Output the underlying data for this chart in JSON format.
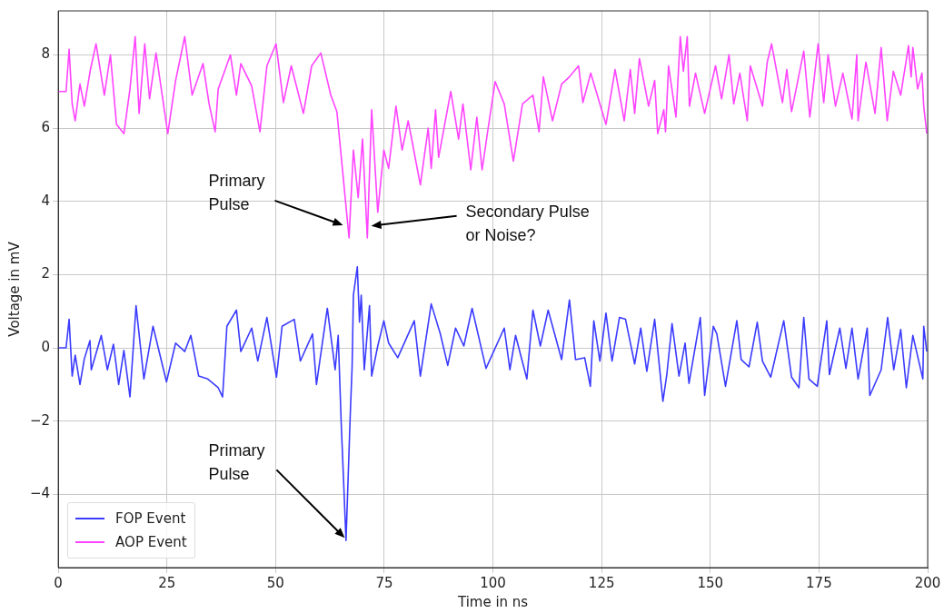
{
  "chart_data": {
    "type": "line",
    "xlabel": "Time in ns",
    "ylabel": "Voltage in mV",
    "xlim": [
      0,
      200
    ],
    "xticks": [
      0,
      25,
      50,
      75,
      100,
      125,
      150,
      175,
      200
    ],
    "ylim": [
      -6,
      9.2
    ],
    "yticks": [
      {
        "value": -4,
        "label": "−4"
      },
      {
        "value": -2,
        "label": "−2"
      },
      0,
      2,
      4,
      6,
      8
    ],
    "grid": true,
    "legend": "bottom left",
    "marker": "none",
    "line_style": "solid",
    "series": [
      {
        "name": "FOP Event",
        "color": "#3b3bff",
        "x": [
          0,
          1.8,
          2.5,
          3.2,
          3.9,
          5.0,
          6.0,
          7.3,
          7.6,
          9.9,
          11.3,
          12.7,
          13.9,
          15.1,
          16.5,
          17.9,
          19.7,
          21.8,
          24.9,
          27.0,
          29.1,
          30.5,
          32.3,
          34.4,
          36.8,
          37.8,
          38.8,
          41.0,
          42.0,
          44.5,
          45.9,
          48.0,
          50.2,
          51.5,
          54.3,
          55.7,
          58.5,
          59.4,
          61.9,
          63.7,
          64.4,
          65.1,
          66.2,
          67.2,
          67.6,
          67.9,
          68.8,
          69.3,
          69.7,
          70.4,
          71.6,
          72.1,
          73.5,
          74.9,
          76.0,
          78.1,
          81.9,
          83.3,
          85.8,
          87.9,
          89.6,
          91.4,
          93.3,
          95.2,
          98.4,
          102.6,
          103.9,
          105.2,
          107.8,
          109.2,
          110.9,
          112.7,
          115.8,
          117.6,
          119.0,
          121.1,
          122.4,
          123.2,
          124.6,
          126.0,
          127.4,
          129.1,
          130.5,
          132.6,
          134.0,
          135.4,
          137.2,
          139.1,
          140.0,
          141.2,
          142.8,
          144.2,
          145.1,
          147.7,
          148.7,
          150.7,
          151.5,
          153.5,
          156.1,
          157.1,
          158.9,
          160.8,
          162.0,
          163.9,
          166.9,
          168.7,
          170.4,
          171.5,
          172.7,
          174.6,
          176.8,
          177.4,
          179.8,
          181.2,
          182.6,
          184.0,
          186.1,
          186.7,
          189.3,
          190.8,
          192.2,
          193.8,
          195.1,
          196.6,
          198.9,
          199.1,
          199.8
        ],
        "values": [
          0,
          0,
          0.78,
          -0.77,
          -0.2,
          -1.0,
          -0.3,
          0.2,
          -0.6,
          0.34,
          -0.6,
          0.1,
          -1.0,
          -0.07,
          -1.34,
          1.15,
          -0.85,
          0.59,
          -0.93,
          0.13,
          -0.1,
          0.34,
          -0.77,
          -0.85,
          -1.09,
          -1.34,
          0.59,
          1.03,
          -0.1,
          0.54,
          -0.36,
          0.83,
          -0.8,
          0.59,
          0.78,
          -0.36,
          0.38,
          -1.0,
          1.08,
          -0.6,
          0.34,
          -2.07,
          -5.26,
          -1.74,
          -0.52,
          1.44,
          2.21,
          0.7,
          1.44,
          -0.6,
          1.15,
          -0.77,
          0.05,
          0.74,
          0.13,
          -0.27,
          0.74,
          -0.77,
          1.2,
          0.38,
          -0.48,
          0.54,
          0.05,
          1.08,
          -0.56,
          0.54,
          -0.6,
          0.34,
          -0.85,
          1.03,
          0.05,
          1.03,
          -0.32,
          1.31,
          -0.32,
          -0.27,
          -1.05,
          0.74,
          -0.36,
          0.95,
          -0.36,
          0.83,
          0.78,
          -0.44,
          0.54,
          -0.64,
          0.78,
          -1.46,
          -0.73,
          0.66,
          -0.77,
          0.13,
          -0.97,
          0.83,
          -1.3,
          0.59,
          0.38,
          -1.05,
          0.74,
          -0.32,
          -0.52,
          0.7,
          -0.36,
          -0.8,
          0.74,
          -0.8,
          -1.09,
          0.83,
          -0.85,
          -1.05,
          0.74,
          -0.73,
          0.54,
          -0.56,
          0.54,
          -0.85,
          0.54,
          -1.3,
          -0.6,
          0.83,
          -0.6,
          0.5,
          -1.09,
          0.34,
          -0.85,
          0.59,
          -0.1
        ]
      },
      {
        "name": "AOP Event",
        "color": "#ff44ff",
        "x": [
          0,
          1.8,
          2.5,
          3.2,
          3.9,
          5.0,
          6.0,
          7.4,
          8.7,
          10.6,
          12.0,
          13.4,
          15.1,
          16.5,
          17.7,
          18.6,
          19.9,
          21.0,
          22.5,
          25.2,
          27.0,
          29.1,
          30.8,
          33.3,
          34.7,
          36.1,
          36.8,
          39.6,
          41.0,
          42.0,
          44.5,
          46.4,
          48.0,
          50.1,
          51.8,
          53.6,
          56.4,
          58.3,
          60.4,
          62.7,
          64.1,
          66.9,
          67.9,
          69.0,
          70.0,
          71.1,
          72.1,
          73.5,
          74.9,
          76.0,
          77.7,
          79.1,
          80.5,
          83.3,
          85.1,
          85.8,
          86.8,
          87.5,
          90.3,
          92.1,
          93.1,
          94.9,
          96.3,
          97.5,
          98.7,
          100.5,
          102.6,
          104.7,
          106.8,
          109.2,
          110.6,
          111.6,
          113.7,
          115.8,
          117.6,
          119.7,
          120.7,
          122.5,
          126.0,
          128.1,
          130.2,
          131.6,
          132.6,
          133.7,
          135.8,
          137.2,
          137.9,
          139.3,
          139.7,
          140.4,
          142.1,
          143.1,
          143.8,
          144.7,
          145.2,
          146.6,
          148.7,
          151.2,
          152.6,
          154.3,
          155.4,
          156.8,
          158.5,
          159.2,
          162.0,
          163.1,
          164.1,
          166.6,
          167.6,
          168.7,
          171.5,
          172.9,
          174.8,
          176.1,
          177.1,
          178.8,
          180.5,
          182.6,
          183.7,
          184.0,
          185.8,
          187.9,
          189.3,
          190.7,
          192.1,
          193.8,
          195.6,
          196.2,
          196.6,
          197.7,
          198.7,
          199.1,
          199.8
        ],
        "values": [
          7.0,
          7.0,
          8.15,
          6.66,
          6.2,
          7.2,
          6.6,
          7.6,
          8.3,
          6.9,
          8.0,
          6.1,
          5.85,
          7.07,
          8.5,
          6.4,
          8.3,
          6.8,
          8.05,
          5.85,
          7.3,
          8.5,
          6.9,
          7.76,
          6.66,
          5.9,
          7.07,
          8.0,
          6.9,
          7.76,
          7.15,
          5.9,
          7.7,
          8.3,
          6.7,
          7.7,
          6.4,
          7.7,
          8.05,
          6.9,
          6.45,
          3.0,
          5.4,
          4.1,
          5.7,
          3.0,
          6.5,
          3.7,
          5.4,
          4.9,
          6.6,
          5.4,
          6.2,
          4.45,
          6.0,
          4.9,
          6.5,
          5.2,
          7.0,
          5.7,
          6.66,
          4.86,
          6.3,
          4.86,
          5.84,
          7.27,
          6.66,
          5.1,
          6.66,
          6.9,
          5.9,
          7.4,
          6.2,
          7.2,
          7.4,
          7.7,
          6.7,
          7.5,
          6.1,
          7.6,
          6.2,
          7.6,
          6.4,
          7.9,
          6.6,
          7.3,
          5.85,
          6.5,
          5.9,
          7.7,
          6.3,
          8.5,
          7.55,
          8.5,
          6.6,
          7.5,
          6.4,
          7.7,
          6.8,
          8.0,
          6.66,
          7.5,
          6.2,
          7.7,
          6.6,
          7.8,
          8.3,
          6.7,
          7.6,
          6.45,
          8.1,
          6.3,
          8.3,
          6.7,
          8.0,
          6.6,
          7.5,
          6.25,
          8.0,
          6.2,
          7.8,
          6.4,
          8.2,
          6.2,
          7.55,
          6.9,
          8.25,
          7.4,
          8.2,
          7.07,
          7.5,
          6.6,
          5.85
        ]
      }
    ],
    "annotations": [
      {
        "text": "Primary\nPulse",
        "x": 65.5,
        "y": 3.35
      },
      {
        "text": "Secondary Pulse\nor Noise?",
        "x": 72.0,
        "y": 3.33
      },
      {
        "text": "Primary\nPulse",
        "x": 65.9,
        "y": -5.19
      }
    ]
  }
}
